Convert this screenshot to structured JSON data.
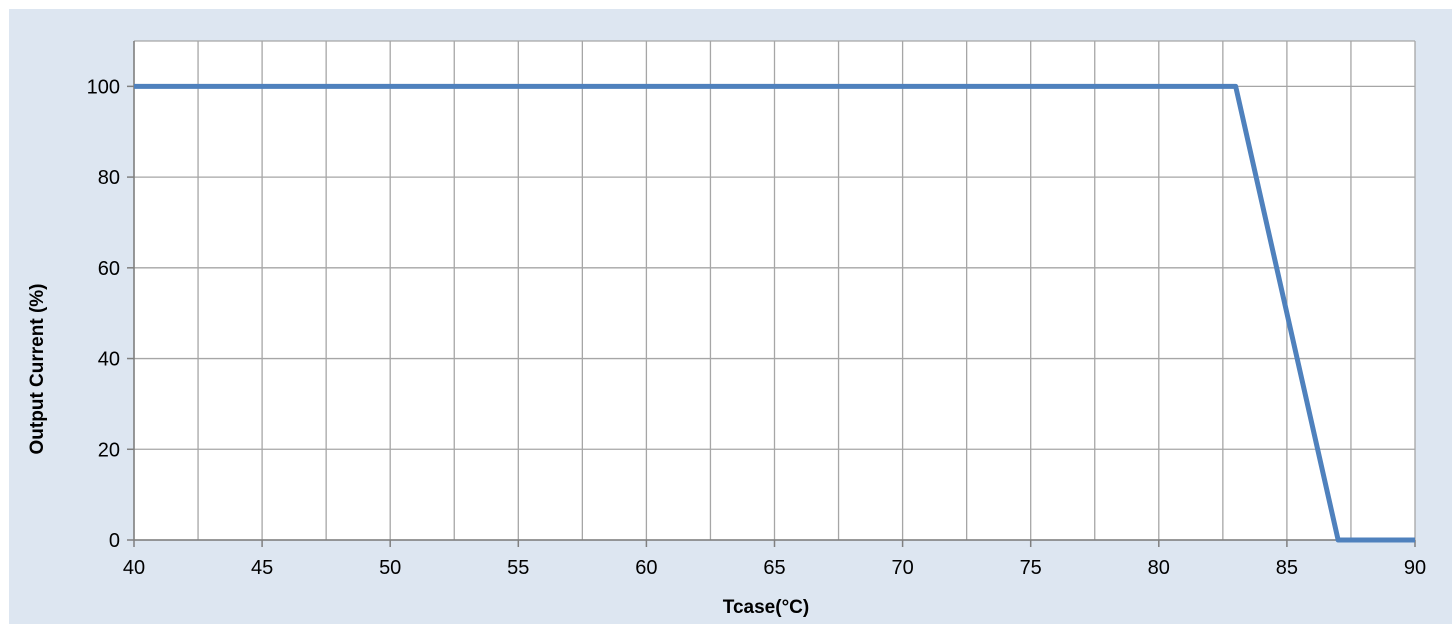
{
  "chart_data": {
    "type": "line",
    "title": "",
    "xlabel": "Tcase(°C)",
    "ylabel": "Output Current (%)",
    "xlim": [
      40,
      90
    ],
    "ylim": [
      0,
      110
    ],
    "x_ticks": [
      40,
      45,
      50,
      55,
      60,
      65,
      70,
      75,
      80,
      85,
      90
    ],
    "x_minor_step": 2.5,
    "y_ticks": [
      0,
      20,
      40,
      60,
      80,
      100
    ],
    "grid": true,
    "legend": "none",
    "series": [
      {
        "color": "#4f81bd",
        "x": [
          40,
          83,
          87,
          90
        ],
        "y": [
          100,
          100,
          0,
          0
        ]
      }
    ]
  }
}
